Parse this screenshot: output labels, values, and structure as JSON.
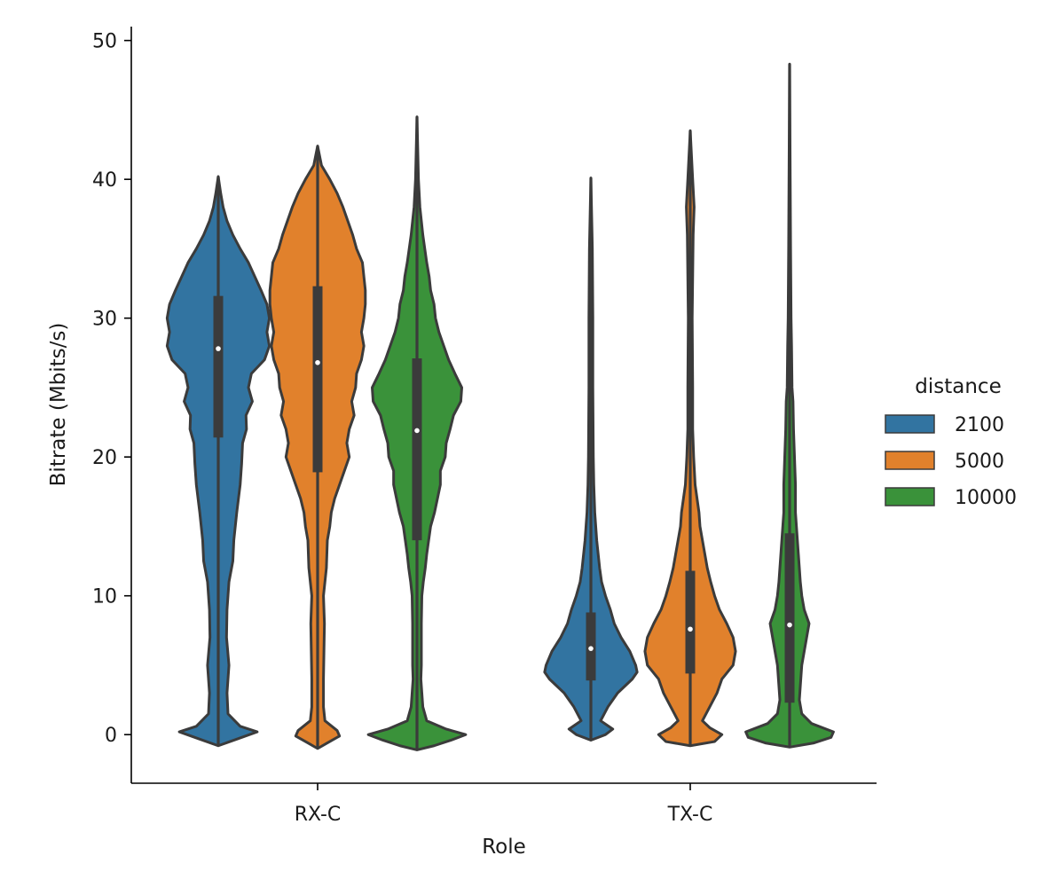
{
  "chart_data": {
    "type": "violin",
    "title": "",
    "xlabel": "Role",
    "ylabel": "Bitrate (Mbits/s)",
    "ylim": [
      -3.5,
      51
    ],
    "yticks": [
      0,
      10,
      20,
      30,
      40,
      50
    ],
    "categories": [
      "RX-C",
      "TX-C"
    ],
    "legend": {
      "title": "distance",
      "position": "right",
      "entries": [
        "2100",
        "5000",
        "10000"
      ]
    },
    "colors": {
      "2100": "#3274a1",
      "5000": "#e1812c",
      "10000": "#3a923a"
    },
    "series": [
      {
        "name": "2100",
        "groups": [
          {
            "category": "RX-C",
            "min": -0.8,
            "max": 40.2,
            "q1": 21.4,
            "median": 27.8,
            "q3": 31.6,
            "profile": [
              [
                -0.8,
                0.0
              ],
              [
                -0.3,
                0.4
              ],
              [
                0.2,
                0.8
              ],
              [
                0.6,
                0.45
              ],
              [
                1.5,
                0.2
              ],
              [
                3,
                0.18
              ],
              [
                5,
                0.22
              ],
              [
                7,
                0.17
              ],
              [
                9,
                0.18
              ],
              [
                11,
                0.22
              ],
              [
                12.5,
                0.3
              ],
              [
                14,
                0.32
              ],
              [
                16,
                0.38
              ],
              [
                18,
                0.45
              ],
              [
                19.5,
                0.48
              ],
              [
                21,
                0.5
              ],
              [
                22,
                0.58
              ],
              [
                23,
                0.57
              ],
              [
                24,
                0.7
              ],
              [
                25,
                0.62
              ],
              [
                26,
                0.68
              ],
              [
                27,
                0.95
              ],
              [
                28,
                1.05
              ],
              [
                29,
                1.0
              ],
              [
                30,
                1.05
              ],
              [
                31,
                1.0
              ],
              [
                32,
                0.88
              ],
              [
                33,
                0.75
              ],
              [
                34,
                0.62
              ],
              [
                35,
                0.45
              ],
              [
                36,
                0.3
              ],
              [
                37,
                0.18
              ],
              [
                38,
                0.1
              ],
              [
                39,
                0.05
              ],
              [
                40.2,
                0.0
              ]
            ]
          },
          {
            "category": "TX-C",
            "min": -0.4,
            "max": 40.1,
            "q1": 3.9,
            "median": 6.2,
            "q3": 8.8,
            "profile": [
              [
                -0.4,
                0.0
              ],
              [
                0,
                0.3
              ],
              [
                0.4,
                0.45
              ],
              [
                1,
                0.2
              ],
              [
                2,
                0.35
              ],
              [
                3,
                0.55
              ],
              [
                4,
                0.85
              ],
              [
                4.5,
                0.95
              ],
              [
                5,
                0.92
              ],
              [
                6,
                0.8
              ],
              [
                7,
                0.62
              ],
              [
                8,
                0.48
              ],
              [
                9,
                0.4
              ],
              [
                10,
                0.3
              ],
              [
                11,
                0.22
              ],
              [
                12,
                0.18
              ],
              [
                13,
                0.15
              ],
              [
                14,
                0.12
              ],
              [
                16,
                0.08
              ],
              [
                18,
                0.06
              ],
              [
                20,
                0.05
              ],
              [
                25,
                0.04
              ],
              [
                30,
                0.04
              ],
              [
                35,
                0.03
              ],
              [
                40.1,
                0.0
              ]
            ]
          }
        ]
      },
      {
        "name": "5000",
        "groups": [
          {
            "category": "RX-C",
            "min": -1.0,
            "max": 42.4,
            "q1": 18.9,
            "median": 26.8,
            "q3": 32.3,
            "profile": [
              [
                -1,
                0.0
              ],
              [
                -0.6,
                0.2
              ],
              [
                -0.1,
                0.45
              ],
              [
                0.3,
                0.4
              ],
              [
                1,
                0.15
              ],
              [
                2,
                0.12
              ],
              [
                4,
                0.12
              ],
              [
                6,
                0.13
              ],
              [
                8,
                0.14
              ],
              [
                10,
                0.12
              ],
              [
                12,
                0.18
              ],
              [
                14,
                0.2
              ],
              [
                15,
                0.25
              ],
              [
                16,
                0.28
              ],
              [
                17,
                0.35
              ],
              [
                18,
                0.45
              ],
              [
                19,
                0.55
              ],
              [
                20,
                0.65
              ],
              [
                21,
                0.6
              ],
              [
                22,
                0.65
              ],
              [
                23,
                0.75
              ],
              [
                24,
                0.7
              ],
              [
                25,
                0.78
              ],
              [
                26,
                0.8
              ],
              [
                27,
                0.9
              ],
              [
                28,
                0.95
              ],
              [
                29,
                0.9
              ],
              [
                30,
                0.95
              ],
              [
                31,
                0.98
              ],
              [
                32,
                0.98
              ],
              [
                33,
                0.95
              ],
              [
                34,
                0.92
              ],
              [
                35,
                0.8
              ],
              [
                36,
                0.72
              ],
              [
                37,
                0.62
              ],
              [
                38,
                0.52
              ],
              [
                39,
                0.4
              ],
              [
                40,
                0.25
              ],
              [
                41,
                0.08
              ],
              [
                42.4,
                0.0
              ]
            ]
          },
          {
            "category": "TX-C",
            "min": -0.8,
            "max": 43.5,
            "q1": 4.4,
            "median": 7.6,
            "q3": 11.8,
            "profile": [
              [
                -0.8,
                0.0
              ],
              [
                -0.5,
                0.5
              ],
              [
                0,
                0.65
              ],
              [
                0.5,
                0.4
              ],
              [
                1,
                0.25
              ],
              [
                2,
                0.4
              ],
              [
                3,
                0.55
              ],
              [
                4,
                0.65
              ],
              [
                5,
                0.88
              ],
              [
                6,
                0.93
              ],
              [
                7,
                0.88
              ],
              [
                8,
                0.75
              ],
              [
                9,
                0.6
              ],
              [
                10,
                0.5
              ],
              [
                11,
                0.42
              ],
              [
                12,
                0.35
              ],
              [
                13,
                0.3
              ],
              [
                14,
                0.25
              ],
              [
                15,
                0.2
              ],
              [
                16,
                0.18
              ],
              [
                18,
                0.1
              ],
              [
                20,
                0.07
              ],
              [
                22,
                0.05
              ],
              [
                25,
                0.05
              ],
              [
                30,
                0.04
              ],
              [
                36,
                0.06
              ],
              [
                38,
                0.08
              ],
              [
                40,
                0.05
              ],
              [
                43.5,
                0.0
              ]
            ]
          }
        ]
      },
      {
        "name": "10000",
        "groups": [
          {
            "category": "RX-C",
            "min": -1.1,
            "max": 44.5,
            "q1": 14.0,
            "median": 21.9,
            "q3": 27.1,
            "profile": [
              [
                -1.1,
                0.0
              ],
              [
                -0.8,
                0.35
              ],
              [
                -0.4,
                0.7
              ],
              [
                0,
                1.0
              ],
              [
                0.4,
                0.6
              ],
              [
                1,
                0.2
              ],
              [
                2,
                0.12
              ],
              [
                3,
                0.1
              ],
              [
                4,
                0.08
              ],
              [
                5,
                0.09
              ],
              [
                6,
                0.09
              ],
              [
                8,
                0.09
              ],
              [
                10,
                0.1
              ],
              [
                11,
                0.13
              ],
              [
                12,
                0.17
              ],
              [
                13,
                0.2
              ],
              [
                14,
                0.24
              ],
              [
                15,
                0.28
              ],
              [
                16,
                0.36
              ],
              [
                17,
                0.42
              ],
              [
                18,
                0.48
              ],
              [
                19,
                0.48
              ],
              [
                20,
                0.58
              ],
              [
                21,
                0.6
              ],
              [
                22,
                0.68
              ],
              [
                23,
                0.75
              ],
              [
                24,
                0.9
              ],
              [
                25,
                0.92
              ],
              [
                26,
                0.78
              ],
              [
                27,
                0.65
              ],
              [
                28,
                0.55
              ],
              [
                29,
                0.45
              ],
              [
                30,
                0.38
              ],
              [
                31,
                0.35
              ],
              [
                32,
                0.28
              ],
              [
                33,
                0.25
              ],
              [
                34,
                0.2
              ],
              [
                35,
                0.16
              ],
              [
                36,
                0.12
              ],
              [
                37,
                0.09
              ],
              [
                38,
                0.06
              ],
              [
                40,
                0.03
              ],
              [
                44.5,
                0.0
              ]
            ]
          },
          {
            "category": "TX-C",
            "min": -0.9,
            "max": 48.3,
            "q1": 2.3,
            "median": 7.9,
            "q3": 14.5,
            "profile": [
              [
                -0.9,
                0.0
              ],
              [
                -0.6,
                0.5
              ],
              [
                -0.2,
                0.85
              ],
              [
                0.2,
                0.9
              ],
              [
                0.8,
                0.45
              ],
              [
                1.5,
                0.25
              ],
              [
                2.5,
                0.2
              ],
              [
                3.5,
                0.22
              ],
              [
                5,
                0.25
              ],
              [
                6,
                0.3
              ],
              [
                7,
                0.35
              ],
              [
                8,
                0.4
              ],
              [
                9,
                0.3
              ],
              [
                10,
                0.25
              ],
              [
                11,
                0.22
              ],
              [
                12,
                0.2
              ],
              [
                13,
                0.18
              ],
              [
                14,
                0.16
              ],
              [
                15,
                0.14
              ],
              [
                16,
                0.12
              ],
              [
                18,
                0.12
              ],
              [
                20,
                0.1
              ],
              [
                22,
                0.08
              ],
              [
                24,
                0.07
              ],
              [
                25,
                0.05
              ],
              [
                28,
                0.04
              ],
              [
                30,
                0.03
              ],
              [
                35,
                0.02
              ],
              [
                48.3,
                0.0
              ]
            ]
          }
        ]
      }
    ]
  }
}
